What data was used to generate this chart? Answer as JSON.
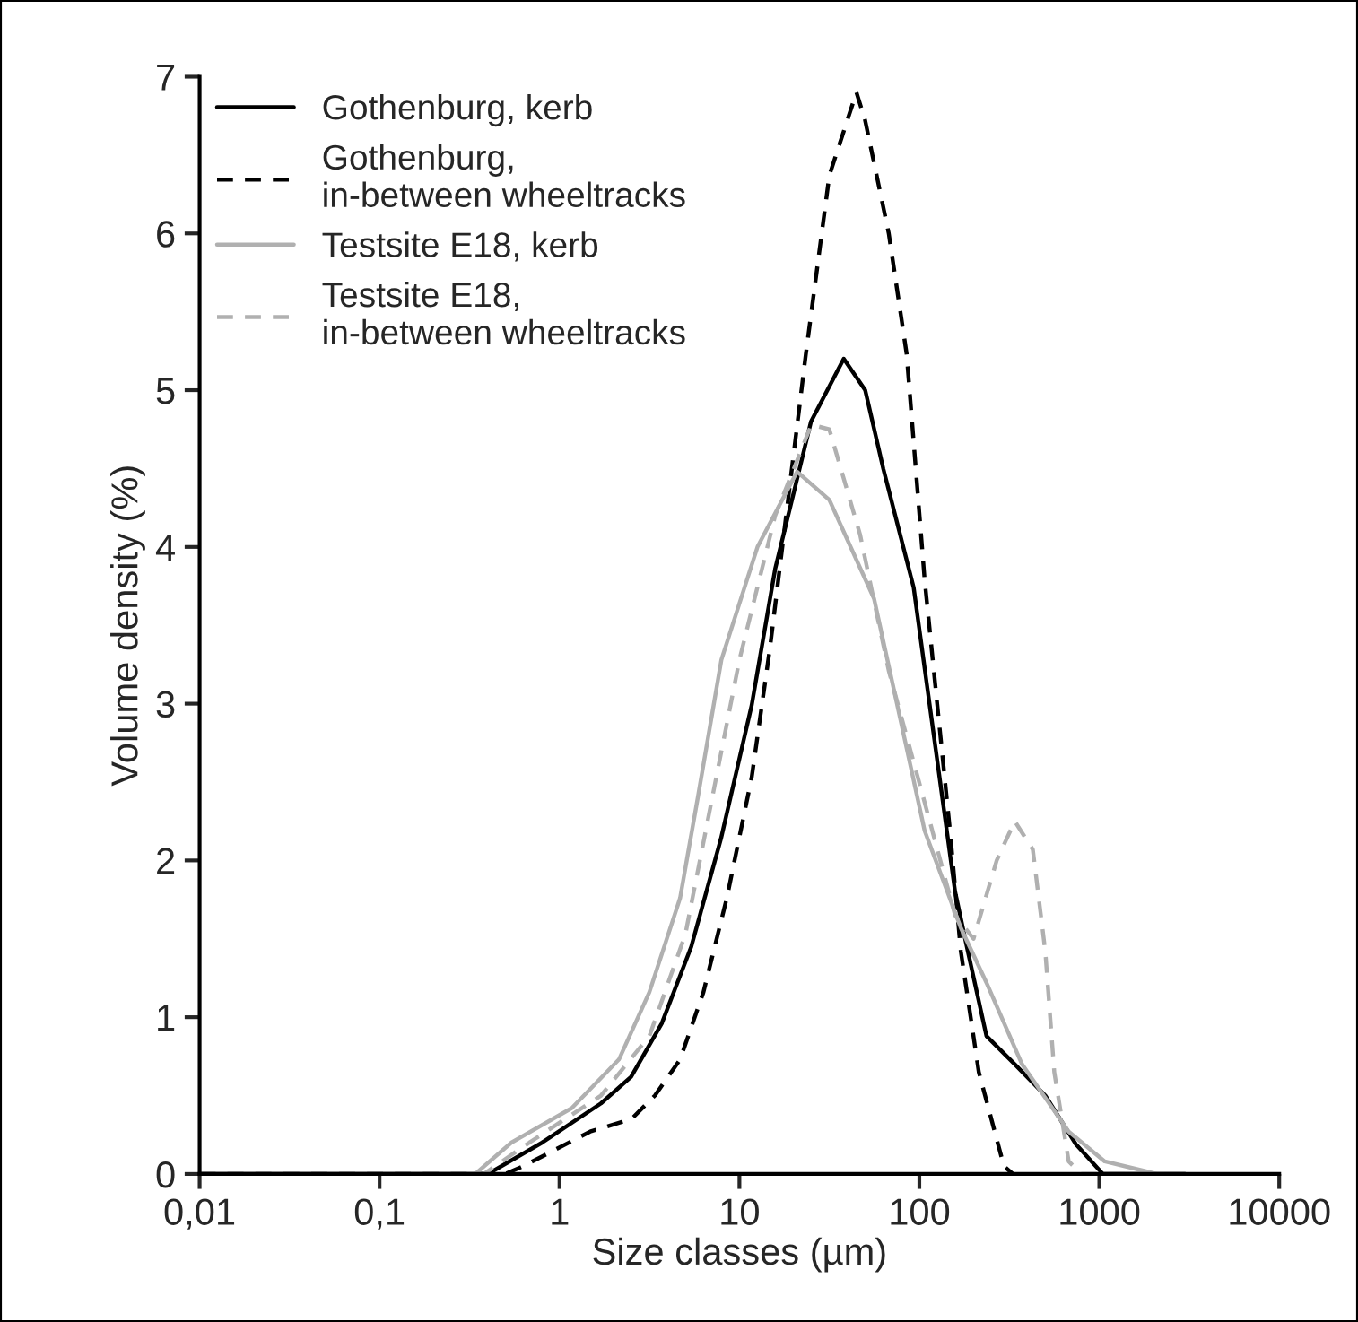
{
  "chart_data": {
    "type": "line",
    "xlabel": "Size classes (µm)",
    "ylabel": "Volume density (%)",
    "log": "x",
    "xlim": [
      0.01,
      10000
    ],
    "xticks": [
      {
        "value": 0.01,
        "label": "0,01"
      },
      {
        "value": 0.1,
        "label": "0,1"
      },
      1,
      10,
      100,
      1000,
      10000
    ],
    "ylim": [
      0,
      7
    ],
    "yticks": [
      0,
      1,
      2,
      3,
      4,
      5,
      6,
      7
    ],
    "grid": false,
    "legend": "top left",
    "marker": "none",
    "series": [
      {
        "name": "Gothenburg, kerb",
        "color": "#000000",
        "line_style": "solid",
        "x": [
          0.01,
          0.4,
          0.8,
          1.7,
          2.5,
          3.7,
          5.4,
          7.9,
          11.7,
          15.8,
          25,
          38,
          50,
          63,
          93,
          158,
          186,
          236,
          339,
          501,
          741,
          1047,
          3000
        ],
        "values": [
          0,
          0,
          0.2,
          0.45,
          0.62,
          0.96,
          1.45,
          2.14,
          2.99,
          3.86,
          4.8,
          5.2,
          5.0,
          4.5,
          3.74,
          1.8,
          1.42,
          0.88,
          0.7,
          0.5,
          0.19,
          0,
          0
        ]
      },
      {
        "name": "Gothenburg,\nin-between wheeltracks",
        "color": "#000000",
        "line_style": "dashed",
        "x": [
          0.01,
          0.5,
          0.63,
          1.48,
          2.51,
          3.39,
          4.68,
          6.31,
          8.51,
          11.7,
          14.8,
          23.4,
          31.6,
          44.7,
          50,
          67.6,
          85,
          107,
          148,
          170,
          214,
          295,
          331
        ],
        "values": [
          0,
          0,
          0.05,
          0.27,
          0.35,
          0.5,
          0.73,
          1.16,
          1.76,
          2.53,
          3.36,
          5.23,
          6.37,
          6.9,
          6.72,
          6.0,
          5.23,
          3.79,
          2.19,
          1.42,
          0.65,
          0.05,
          0
        ]
      },
      {
        "name": "Testsite E18, kerb",
        "color": "#b0b0b0",
        "line_style": "solid",
        "x": [
          0.01,
          0.34,
          0.54,
          1.17,
          2.14,
          3.16,
          4.68,
          5.89,
          7.94,
          12.6,
          20.9,
          31.6,
          56,
          107,
          170,
          236,
          372,
          676,
          1072,
          2089,
          3000
        ],
        "values": [
          0,
          0,
          0.2,
          0.42,
          0.73,
          1.16,
          1.76,
          2.41,
          3.28,
          4.0,
          4.48,
          4.3,
          3.67,
          2.19,
          1.57,
          1.22,
          0.7,
          0.27,
          0.08,
          0,
          0
        ]
      },
      {
        "name": "Testsite E18,\nin-between wheeltracks",
        "color": "#b0b0b0",
        "line_style": "dashed",
        "x": [
          0.01,
          0.38,
          0.68,
          1.7,
          3.16,
          5.01,
          6.76,
          10,
          15.8,
          25.1,
          31.6,
          46.8,
          67.6,
          107,
          158,
          200,
          269,
          339,
          427,
          501,
          562,
          676,
          794,
          3000
        ],
        "values": [
          0,
          0,
          0.2,
          0.5,
          0.88,
          1.53,
          2.29,
          3.28,
          4.2,
          4.78,
          4.75,
          4.08,
          3.21,
          2.37,
          1.65,
          1.5,
          2.0,
          2.25,
          2.07,
          1.42,
          0.65,
          0.08,
          0,
          0
        ]
      }
    ]
  }
}
